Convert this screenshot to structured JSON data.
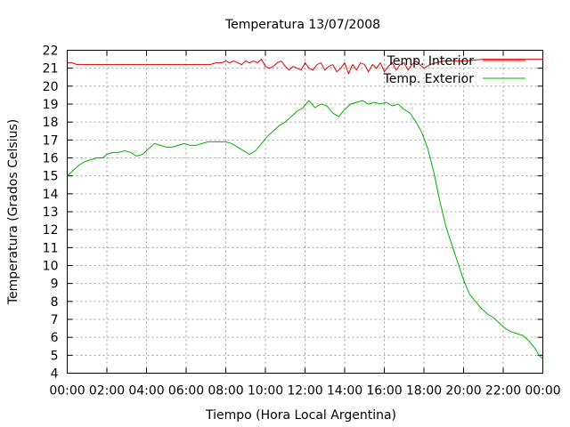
{
  "chart_data": {
    "type": "line",
    "title": "Temperatura 13/07/2008",
    "xlabel": "Tiempo (Hora Local Argentina)",
    "ylabel": "Temperatura (Grados Celsius)",
    "xlim": [
      0,
      24
    ],
    "ylim": [
      4,
      22
    ],
    "x_ticks": [
      "00:00",
      "02:00",
      "04:00",
      "06:00",
      "08:00",
      "10:00",
      "12:00",
      "14:00",
      "16:00",
      "18:00",
      "20:00",
      "22:00",
      "00:00"
    ],
    "y_ticks": [
      "4",
      "5",
      "6",
      "7",
      "8",
      "9",
      "10",
      "11",
      "12",
      "13",
      "14",
      "15",
      "16",
      "17",
      "18",
      "19",
      "20",
      "21",
      "22"
    ],
    "grid": true,
    "legend_position": "top-right",
    "series": [
      {
        "name": "Temp. Interior",
        "color": "#e00000",
        "x": [
          0,
          0.25,
          0.5,
          1,
          2,
          3,
          4,
          5,
          6,
          7,
          7.2,
          7.5,
          7.8,
          8,
          8.2,
          8.4,
          8.6,
          8.8,
          9,
          9.2,
          9.4,
          9.6,
          9.8,
          10,
          10.2,
          10.4,
          10.6,
          10.8,
          11,
          11.2,
          11.4,
          11.6,
          11.8,
          12,
          12.2,
          12.4,
          12.6,
          12.8,
          13,
          13.2,
          13.4,
          13.6,
          13.8,
          14,
          14.2,
          14.4,
          14.6,
          14.8,
          15,
          15.2,
          15.4,
          15.6,
          15.8,
          16,
          16.2,
          16.4,
          16.6,
          16.8,
          17,
          17.2,
          17.4,
          17.6,
          17.8,
          18,
          18.3,
          18.6,
          19,
          19.5,
          20,
          21,
          22,
          23,
          24
        ],
        "values": [
          21.3,
          21.3,
          21.2,
          21.2,
          21.2,
          21.2,
          21.2,
          21.2,
          21.2,
          21.2,
          21.2,
          21.3,
          21.3,
          21.4,
          21.3,
          21.4,
          21.3,
          21.2,
          21.4,
          21.3,
          21.4,
          21.3,
          21.5,
          21.1,
          21.0,
          21.1,
          21.3,
          21.4,
          21.1,
          20.9,
          21.1,
          21.0,
          20.9,
          21.3,
          21.0,
          20.9,
          21.2,
          21.3,
          20.9,
          21.1,
          21.2,
          20.8,
          21.0,
          21.3,
          20.7,
          21.2,
          20.9,
          21.3,
          21.2,
          20.8,
          21.2,
          21.0,
          21.3,
          20.8,
          21.1,
          21.3,
          20.9,
          21.2,
          21.3,
          20.9,
          21.2,
          21.4,
          21.2,
          21.0,
          21.2,
          21.3,
          21.4,
          21.4,
          21.4,
          21.5,
          21.5,
          21.5,
          21.5
        ]
      },
      {
        "name": "Temp. Exterior",
        "color": "#00b000",
        "x": [
          0,
          0.3,
          0.6,
          0.9,
          1.2,
          1.5,
          1.8,
          2.0,
          2.3,
          2.6,
          2.9,
          3.2,
          3.5,
          3.8,
          4.1,
          4.4,
          4.7,
          5.0,
          5.3,
          5.6,
          5.9,
          6.2,
          6.5,
          6.8,
          7.1,
          7.4,
          7.7,
          8.0,
          8.3,
          8.6,
          8.9,
          9.2,
          9.5,
          9.8,
          10.1,
          10.4,
          10.7,
          11.0,
          11.3,
          11.6,
          11.9,
          12.2,
          12.5,
          12.8,
          13.1,
          13.4,
          13.7,
          14.0,
          14.3,
          14.6,
          14.9,
          15.2,
          15.5,
          15.8,
          16.1,
          16.4,
          16.7,
          17.0,
          17.3,
          17.6,
          17.9,
          18.2,
          18.5,
          18.8,
          19.1,
          19.4,
          19.7,
          20.0,
          20.3,
          20.6,
          20.9,
          21.2,
          21.5,
          21.8,
          22.1,
          22.4,
          22.7,
          23.0,
          23.3,
          23.6,
          23.8,
          24.0
        ],
        "values": [
          15.0,
          15.3,
          15.6,
          15.8,
          15.9,
          16.0,
          16.0,
          16.2,
          16.3,
          16.3,
          16.4,
          16.3,
          16.1,
          16.2,
          16.5,
          16.8,
          16.7,
          16.6,
          16.6,
          16.7,
          16.8,
          16.7,
          16.7,
          16.8,
          16.9,
          16.9,
          16.9,
          16.9,
          16.8,
          16.6,
          16.4,
          16.2,
          16.4,
          16.8,
          17.2,
          17.5,
          17.8,
          18.0,
          18.3,
          18.6,
          18.8,
          19.2,
          18.8,
          19.0,
          18.9,
          18.5,
          18.3,
          18.7,
          19.0,
          19.1,
          19.2,
          19.0,
          19.1,
          19.0,
          19.1,
          18.9,
          19.0,
          18.7,
          18.5,
          18.0,
          17.4,
          16.5,
          15.2,
          13.6,
          12.2,
          11.2,
          10.2,
          9.2,
          8.4,
          8.0,
          7.6,
          7.3,
          7.1,
          6.8,
          6.5,
          6.3,
          6.2,
          6.1,
          5.8,
          5.4,
          5.0,
          4.8
        ]
      }
    ]
  }
}
